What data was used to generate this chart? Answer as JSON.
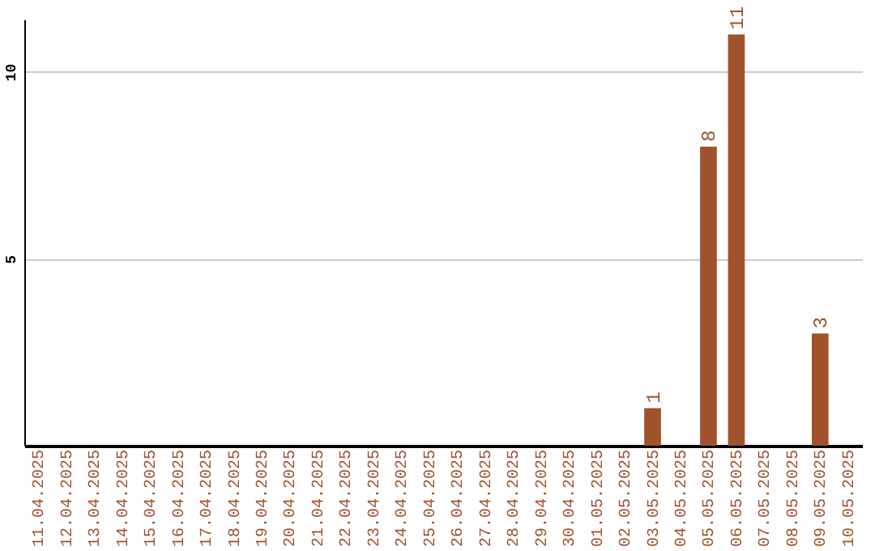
{
  "chart_data": {
    "type": "bar",
    "categories": [
      "11.04.2025",
      "12.04.2025",
      "13.04.2025",
      "14.04.2025",
      "15.04.2025",
      "16.04.2025",
      "17.04.2025",
      "18.04.2025",
      "19.04.2025",
      "20.04.2025",
      "21.04.2025",
      "22.04.2025",
      "23.04.2025",
      "24.04.2025",
      "25.04.2025",
      "26.04.2025",
      "27.04.2025",
      "28.04.2025",
      "29.04.2025",
      "30.04.2025",
      "01.05.2025",
      "02.05.2025",
      "03.05.2025",
      "04.05.2025",
      "05.05.2025",
      "06.05.2025",
      "07.05.2025",
      "08.05.2025",
      "09.05.2025",
      "10.05.2025"
    ],
    "values": [
      null,
      null,
      null,
      null,
      null,
      null,
      null,
      null,
      null,
      null,
      null,
      null,
      null,
      null,
      null,
      null,
      null,
      null,
      null,
      null,
      null,
      null,
      1,
      null,
      8,
      11,
      null,
      null,
      3,
      null
    ],
    "color": "#a0522d",
    "ylim": [
      0,
      11.4
    ],
    "yticks": [
      5,
      10
    ],
    "grid": "y",
    "data_labels": true
  }
}
